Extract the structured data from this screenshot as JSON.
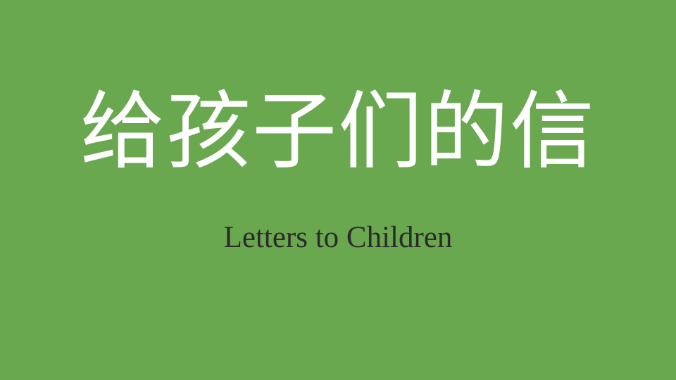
{
  "slide": {
    "title": "给孩子们的信",
    "subtitle": "Letters to Children"
  },
  "colors": {
    "background": "#6aa84f",
    "title": "#ffffff",
    "subtitle": "#2b2b2b"
  }
}
